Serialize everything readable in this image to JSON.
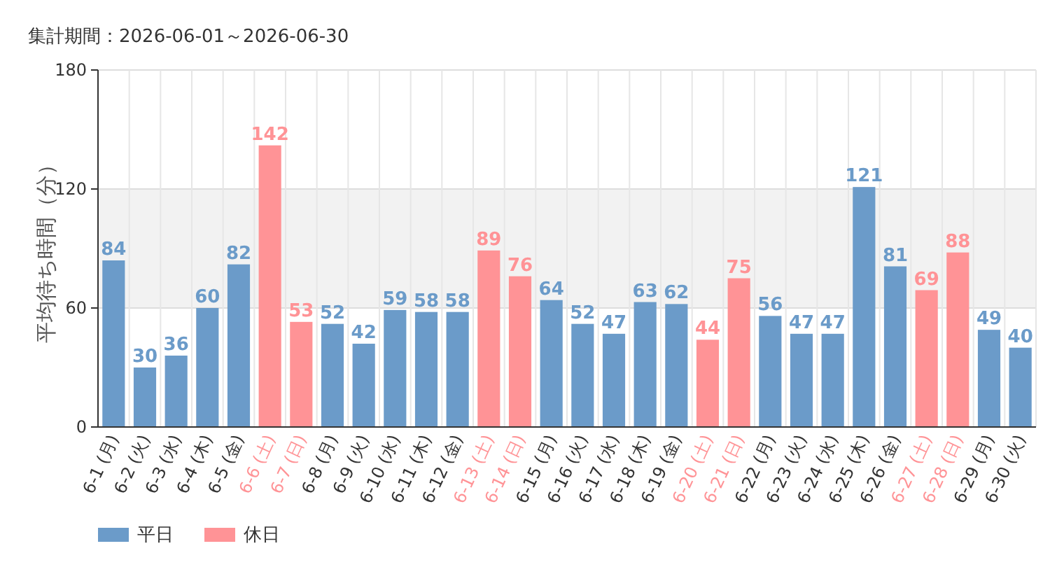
{
  "chart_data": {
    "type": "bar",
    "title": "集計期間：2026-06-01～2026-06-30",
    "ylabel": "平均待ち時間（分）",
    "categories": [
      "6-1 (月)",
      "6-2 (火)",
      "6-3 (水)",
      "6-4 (木)",
      "6-5 (金)",
      "6-6 (土)",
      "6-7 (日)",
      "6-8 (月)",
      "6-9 (火)",
      "6-10 (水)",
      "6-11 (木)",
      "6-12 (金)",
      "6-13 (土)",
      "6-14 (日)",
      "6-15 (月)",
      "6-16 (火)",
      "6-17 (水)",
      "6-18 (木)",
      "6-19 (金)",
      "6-20 (土)",
      "6-21 (日)",
      "6-22 (月)",
      "6-23 (火)",
      "6-24 (水)",
      "6-25 (木)",
      "6-26 (金)",
      "6-27 (土)",
      "6-28 (日)",
      "6-29 (月)",
      "6-30 (火)"
    ],
    "series": [
      {
        "name": "平日",
        "color": "#6b9bc9",
        "values": [
          84,
          30,
          36,
          60,
          82,
          null,
          null,
          52,
          42,
          59,
          58,
          58,
          null,
          null,
          64,
          52,
          47,
          63,
          62,
          null,
          null,
          56,
          47,
          47,
          121,
          81,
          null,
          null,
          49,
          40
        ]
      },
      {
        "name": "休日",
        "color": "#ff9396",
        "values": [
          null,
          null,
          null,
          null,
          null,
          142,
          53,
          null,
          null,
          null,
          null,
          null,
          89,
          76,
          null,
          null,
          null,
          null,
          null,
          44,
          75,
          null,
          null,
          null,
          null,
          null,
          69,
          88,
          null,
          null
        ]
      }
    ],
    "ylim": [
      0,
      180
    ],
    "yticks": [
      0,
      60,
      120,
      180
    ],
    "grid": true,
    "data_labels": true,
    "legend": "bottom left",
    "bands": [
      {
        "axis": "y",
        "from": 60,
        "to": 120,
        "color": "#f2f2f2"
      }
    ]
  }
}
